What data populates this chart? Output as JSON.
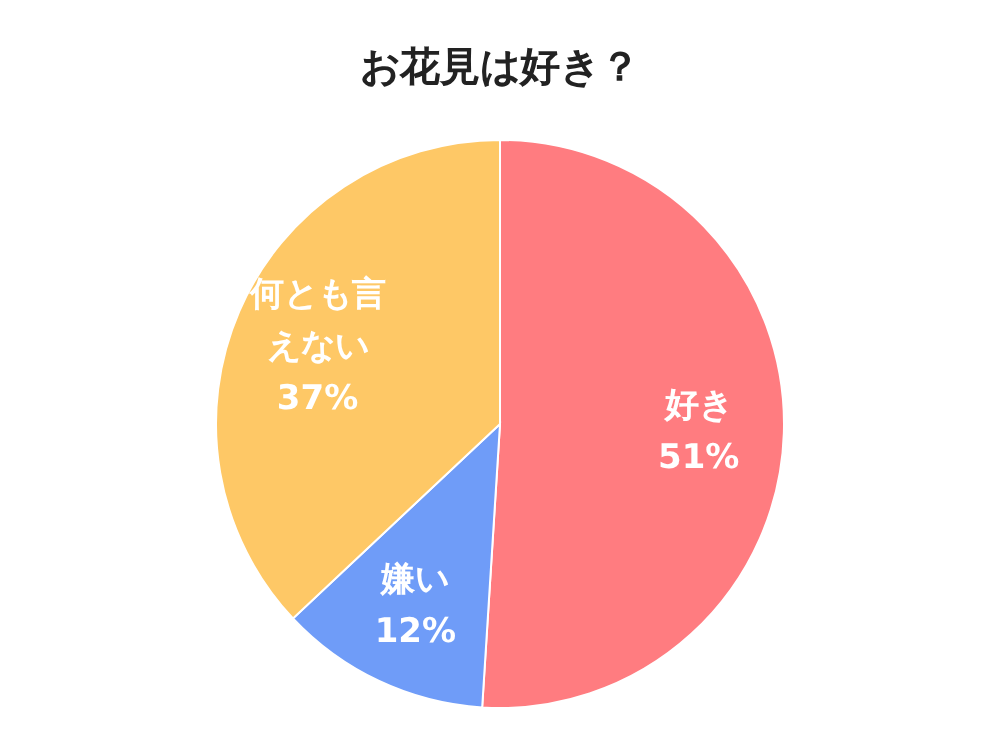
{
  "chart_data": {
    "type": "pie",
    "title": "お花見は好き？",
    "categories": [
      "好き",
      "嫌い",
      "何とも言えない"
    ],
    "values": [
      51,
      12,
      37
    ],
    "colors": [
      "#ff7c80",
      "#6f9cf8",
      "#fec866"
    ],
    "value_labels": [
      "51%",
      "12%",
      "37%"
    ]
  }
}
